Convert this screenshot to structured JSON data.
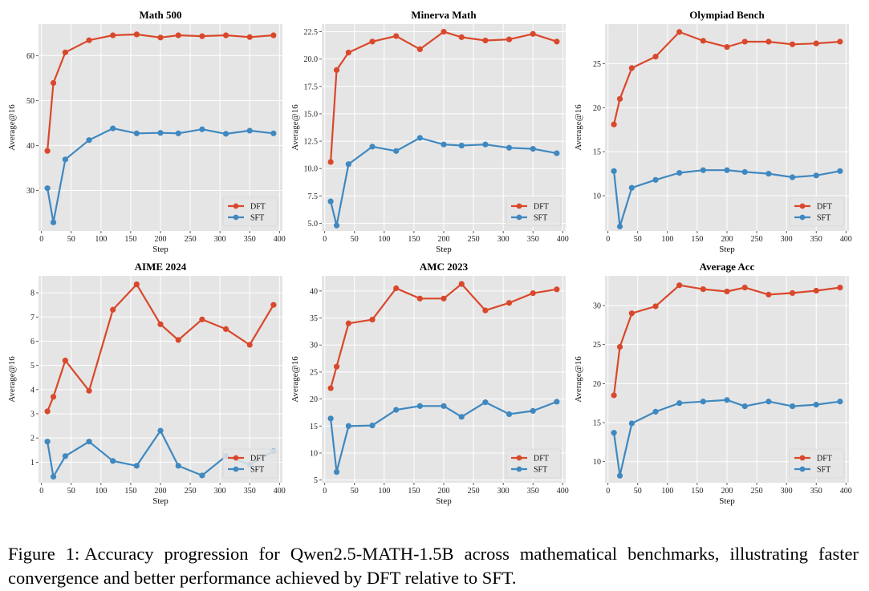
{
  "caption": {
    "prefix": "Figure 1:",
    "text": "Accuracy progression for Qwen2.5-MATH-1.5B across mathematical benchmarks, illustrating faster convergence and better performance achieved by DFT relative to SFT."
  },
  "colors": {
    "DFT": "#d9482b",
    "SFT": "#3f88c0",
    "panel_bg": "#e5e5e5",
    "grid": "#ffffff"
  },
  "chart_data": [
    {
      "type": "line",
      "title": "Math 500",
      "xlabel": "Step",
      "ylabel": "Average@16",
      "x": [
        10,
        20,
        40,
        80,
        120,
        160,
        200,
        230,
        270,
        310,
        350,
        390
      ],
      "xlim": [
        -5,
        405
      ],
      "ylim": [
        21,
        67
      ],
      "xticks": [
        0,
        50,
        100,
        150,
        200,
        250,
        300,
        350,
        400
      ],
      "yticks": [
        30,
        40,
        50,
        60
      ],
      "ytick_labels": [
        "30",
        "40",
        "50",
        "60"
      ],
      "legend": "bottom-right",
      "series": [
        {
          "name": "DFT",
          "values": [
            38.8,
            53.9,
            60.7,
            63.4,
            64.5,
            64.7,
            64.0,
            64.5,
            64.3,
            64.5,
            64.1,
            64.5
          ]
        },
        {
          "name": "SFT",
          "values": [
            30.5,
            22.9,
            36.9,
            41.2,
            43.8,
            42.7,
            42.8,
            42.7,
            43.6,
            42.6,
            43.3,
            42.7
          ]
        }
      ]
    },
    {
      "type": "line",
      "title": "Minerva Math",
      "xlabel": "Step",
      "ylabel": "Average@16",
      "x": [
        10,
        20,
        40,
        80,
        120,
        160,
        200,
        230,
        270,
        310,
        350,
        390
      ],
      "xlim": [
        -5,
        405
      ],
      "ylim": [
        4.3,
        23.2
      ],
      "xticks": [
        0,
        50,
        100,
        150,
        200,
        250,
        300,
        350,
        400
      ],
      "yticks": [
        5,
        7.5,
        10,
        12.5,
        15,
        17.5,
        20,
        22.5
      ],
      "ytick_labels": [
        "5.0",
        "7.5",
        "10.0",
        "12.5",
        "15.0",
        "17.5",
        "20.0",
        "22.5"
      ],
      "legend": "bottom-right",
      "series": [
        {
          "name": "DFT",
          "values": [
            10.6,
            19.0,
            20.6,
            21.6,
            22.1,
            20.9,
            22.5,
            22.0,
            21.7,
            21.8,
            22.3,
            21.6
          ]
        },
        {
          "name": "SFT",
          "values": [
            7.0,
            4.8,
            10.4,
            12.0,
            11.6,
            12.8,
            12.2,
            12.1,
            12.2,
            11.9,
            11.8,
            11.4
          ]
        }
      ]
    },
    {
      "type": "line",
      "title": "Olympiad Bench",
      "xlabel": "Step",
      "ylabel": "Average@16",
      "x": [
        10,
        20,
        40,
        80,
        120,
        160,
        200,
        230,
        270,
        310,
        350,
        390
      ],
      "xlim": [
        -5,
        405
      ],
      "ylim": [
        6.0,
        29.5
      ],
      "xticks": [
        0,
        50,
        100,
        150,
        200,
        250,
        300,
        350,
        400
      ],
      "yticks": [
        10,
        15,
        20,
        25
      ],
      "ytick_labels": [
        "10",
        "15",
        "20",
        "25"
      ],
      "legend": "bottom-right",
      "series": [
        {
          "name": "DFT",
          "values": [
            18.1,
            21.0,
            24.5,
            25.8,
            28.6,
            27.6,
            26.9,
            27.5,
            27.5,
            27.2,
            27.3,
            27.5
          ]
        },
        {
          "name": "SFT",
          "values": [
            12.8,
            6.5,
            10.9,
            11.8,
            12.6,
            12.9,
            12.9,
            12.7,
            12.5,
            12.1,
            12.3,
            12.8
          ]
        }
      ]
    },
    {
      "type": "line",
      "title": "AIME 2024",
      "xlabel": "Step",
      "ylabel": "Average@16",
      "x": [
        10,
        20,
        40,
        80,
        120,
        160,
        200,
        230,
        270,
        310,
        350,
        390
      ],
      "xlim": [
        -5,
        405
      ],
      "ylim": [
        0.15,
        8.7
      ],
      "xticks": [
        0,
        50,
        100,
        150,
        200,
        250,
        300,
        350,
        400
      ],
      "yticks": [
        1,
        2,
        3,
        4,
        5,
        6,
        7,
        8
      ],
      "ytick_labels": [
        "1",
        "2",
        "3",
        "4",
        "5",
        "6",
        "7",
        "8"
      ],
      "legend": "bottom-right",
      "series": [
        {
          "name": "DFT",
          "values": [
            3.1,
            3.7,
            5.2,
            3.95,
            7.3,
            8.35,
            6.7,
            6.05,
            6.9,
            6.5,
            5.85,
            7.5
          ]
        },
        {
          "name": "SFT",
          "values": [
            1.85,
            0.4,
            1.25,
            1.85,
            1.05,
            0.85,
            2.3,
            0.85,
            0.45,
            1.25,
            0.9,
            1.45
          ]
        }
      ]
    },
    {
      "type": "line",
      "title": "AMC 2023",
      "xlabel": "Step",
      "ylabel": "Average@16",
      "x": [
        10,
        20,
        40,
        80,
        120,
        160,
        200,
        230,
        270,
        310,
        350,
        390
      ],
      "xlim": [
        -5,
        405
      ],
      "ylim": [
        4.5,
        42.8
      ],
      "xticks": [
        0,
        50,
        100,
        150,
        200,
        250,
        300,
        350,
        400
      ],
      "yticks": [
        5,
        10,
        15,
        20,
        25,
        30,
        35,
        40
      ],
      "ytick_labels": [
        "5",
        "10",
        "15",
        "20",
        "25",
        "30",
        "35",
        "40"
      ],
      "legend": "bottom-right",
      "series": [
        {
          "name": "DFT",
          "values": [
            22.0,
            26.0,
            34.0,
            34.7,
            40.5,
            38.6,
            38.6,
            41.3,
            36.4,
            37.8,
            39.6,
            40.3
          ]
        },
        {
          "name": "SFT",
          "values": [
            16.4,
            6.5,
            15.0,
            15.1,
            18.0,
            18.7,
            18.7,
            16.7,
            19.4,
            17.2,
            17.8,
            19.5
          ]
        }
      ]
    },
    {
      "type": "line",
      "title": "Average Acc",
      "xlabel": "Step",
      "ylabel": "Average@16",
      "x": [
        10,
        20,
        40,
        80,
        120,
        160,
        200,
        230,
        270,
        310,
        350,
        390
      ],
      "xlim": [
        -5,
        405
      ],
      "ylim": [
        7.3,
        33.8
      ],
      "xticks": [
        0,
        50,
        100,
        150,
        200,
        250,
        300,
        350,
        400
      ],
      "yticks": [
        10,
        15,
        20,
        25,
        30
      ],
      "ytick_labels": [
        "10",
        "15",
        "20",
        "25",
        "30"
      ],
      "legend": "bottom-right",
      "series": [
        {
          "name": "DFT",
          "values": [
            18.5,
            24.7,
            29.0,
            29.9,
            32.6,
            32.1,
            31.8,
            32.3,
            31.4,
            31.6,
            31.9,
            32.3
          ]
        },
        {
          "name": "SFT",
          "values": [
            13.7,
            8.2,
            14.9,
            16.4,
            17.5,
            17.7,
            17.9,
            17.1,
            17.7,
            17.1,
            17.3,
            17.7
          ]
        }
      ]
    }
  ]
}
